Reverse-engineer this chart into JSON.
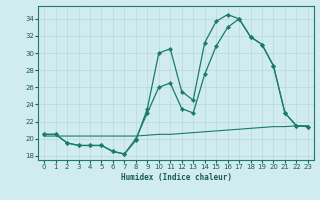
{
  "xlabel": "Humidex (Indice chaleur)",
  "bg_color": "#d0ecee",
  "line_color": "#1a7a6e",
  "grid_color": "#b8d8da",
  "x_ticks": [
    0,
    1,
    2,
    3,
    4,
    5,
    6,
    7,
    8,
    9,
    10,
    11,
    12,
    13,
    14,
    15,
    16,
    17,
    18,
    19,
    20,
    21,
    22,
    23
  ],
  "y_ticks": [
    18,
    20,
    22,
    24,
    26,
    28,
    30,
    32,
    34
  ],
  "ylim": [
    17.5,
    35.5
  ],
  "xlim": [
    -0.5,
    23.5
  ],
  "line1_x": [
    0,
    1,
    2,
    3,
    4,
    5,
    6,
    7,
    8,
    9,
    10,
    11,
    12,
    13,
    14,
    15,
    16,
    17,
    18,
    19,
    20,
    21,
    22,
    23
  ],
  "line1_y": [
    20.5,
    20.5,
    19.5,
    19.2,
    19.2,
    19.2,
    18.5,
    18.2,
    19.8,
    23.5,
    30.0,
    30.5,
    25.5,
    24.5,
    31.2,
    33.7,
    34.5,
    34.0,
    31.9,
    31.0,
    28.5,
    23.0,
    21.5,
    21.4
  ],
  "line2_x": [
    0,
    1,
    2,
    3,
    4,
    5,
    6,
    7,
    8,
    9,
    10,
    11,
    12,
    13,
    14,
    15,
    16,
    17,
    18,
    19,
    20,
    21,
    22,
    23
  ],
  "line2_y": [
    20.5,
    20.5,
    19.5,
    19.2,
    19.2,
    19.2,
    18.5,
    18.2,
    20.0,
    23.0,
    26.0,
    26.5,
    23.5,
    23.0,
    27.5,
    30.8,
    33.0,
    34.0,
    31.9,
    31.0,
    28.5,
    23.0,
    21.5,
    21.4
  ],
  "line3_x": [
    0,
    1,
    2,
    3,
    4,
    5,
    6,
    7,
    8,
    9,
    10,
    11,
    12,
    13,
    14,
    15,
    16,
    17,
    18,
    19,
    20,
    21,
    22,
    23
  ],
  "line3_y": [
    20.3,
    20.3,
    20.3,
    20.3,
    20.3,
    20.3,
    20.3,
    20.3,
    20.3,
    20.4,
    20.5,
    20.5,
    20.6,
    20.7,
    20.8,
    20.9,
    21.0,
    21.1,
    21.2,
    21.3,
    21.4,
    21.4,
    21.5,
    21.5
  ]
}
